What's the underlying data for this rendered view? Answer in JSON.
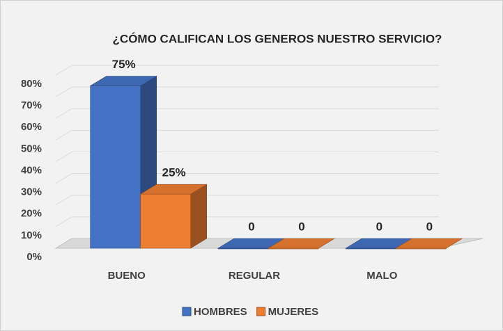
{
  "chart_data": {
    "type": "bar3d",
    "title": "¿CÓMO CALIFICAN LOS GENEROS NUESTRO SERVICIO?",
    "categories": [
      "BUENO",
      "REGULAR",
      "MALO"
    ],
    "series": [
      {
        "name": "HOMBRES",
        "color": "#4472c4",
        "values": [
          75,
          0,
          0
        ],
        "value_labels": [
          "75%",
          "0",
          "0"
        ]
      },
      {
        "name": "MUJERES",
        "color": "#ed7d31",
        "values": [
          25,
          0,
          0
        ],
        "value_labels": [
          "25%",
          "0",
          "0"
        ]
      }
    ],
    "ylim": [
      0,
      80
    ],
    "yticks": [
      {
        "value": 0,
        "label": "0%"
      },
      {
        "value": 10,
        "label": "10%"
      },
      {
        "value": 20,
        "label": "20%"
      },
      {
        "value": 30,
        "label": "30%"
      },
      {
        "value": 40,
        "label": "40%"
      },
      {
        "value": 50,
        "label": "50%"
      },
      {
        "value": 60,
        "label": "60%"
      },
      {
        "value": 70,
        "label": "70%"
      },
      {
        "value": 80,
        "label": "80%"
      }
    ],
    "grid": true,
    "legend": "bottom"
  }
}
